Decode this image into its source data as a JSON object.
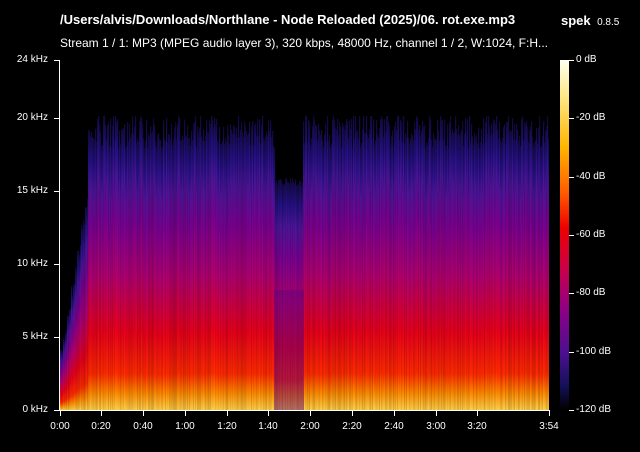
{
  "header": {
    "title": "/Users/alvis/Downloads/Northlane - Node Reloaded (2025)/06. rot.exe.mp3",
    "app_name": "spek",
    "app_version": "0.8.5",
    "stream_info": "Stream 1 / 1: MP3 (MPEG audio layer 3), 320 kbps, 48000 Hz, channel 1 / 2, W:1024, F:H..."
  },
  "freq_axis": {
    "labels": [
      "24 kHz",
      "20 kHz",
      "15 kHz",
      "10 kHz",
      "5 kHz",
      "0 kHz"
    ]
  },
  "time_axis": {
    "labels": [
      "0:00",
      "0:20",
      "0:40",
      "1:00",
      "1:20",
      "1:40",
      "2:00",
      "2:20",
      "2:40",
      "3:00",
      "3:20",
      "3:54"
    ]
  },
  "db_scale": {
    "labels": [
      "0 dB",
      "-20 dB",
      "-40 dB",
      "-60 dB",
      "-80 dB",
      "-100 dB",
      "-120 dB"
    ]
  },
  "colors": {
    "background": "#000000",
    "text": "#ffffff"
  }
}
